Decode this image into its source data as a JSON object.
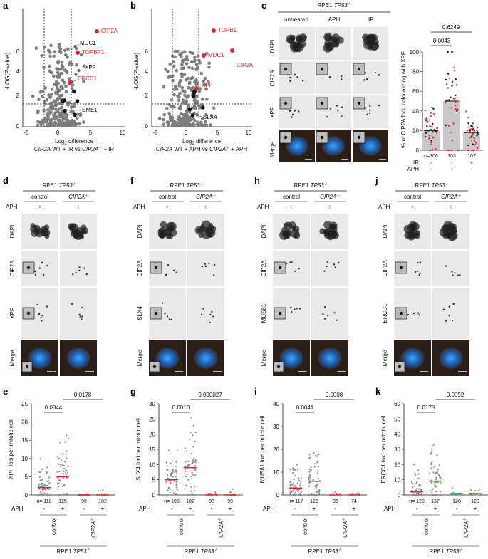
{
  "panel_labels": [
    "a",
    "b",
    "c",
    "d",
    "e",
    "f",
    "g",
    "h",
    "i",
    "j",
    "k"
  ],
  "cell_line": "RPE1",
  "gene": "TP53",
  "gene_sup": "-/-",
  "mutant": "CIP2A",
  "mutant_sup": "-/-",
  "conditions": {
    "control": "control",
    "untreated": "untreated",
    "aph": "APH",
    "ir": "IR",
    "plus": "+",
    "minus": "-"
  },
  "channels": {
    "dapi": "DAPI",
    "cip2a": "CIP2A",
    "xpf": "XPF",
    "slx4": "SLX4",
    "mus81": "MUS81",
    "ercc1": "ERCC1",
    "merge": "Merge"
  },
  "volcano_a": {
    "ylabel": "-LOG(P-value)",
    "xlabel_pre": "Log",
    "xlabel_sub": "2",
    "xlabel_post": " difference",
    "subtitle_pre": "CIP2A",
    "subtitle_mid": " WT + IR vs ",
    "subtitle_mut": "CIP2A",
    "subtitle_post": " + IR",
    "xticks": [
      "-5",
      "0",
      "5",
      "10"
    ],
    "yticks": [
      "0",
      "2",
      "4",
      "6"
    ],
    "labels": {
      "cip2a": "CIP2A",
      "topbp1": "TOPBP1",
      "mdc1": "MDC1",
      "xpf": "XPF",
      "ercc1": "ERCC1",
      "eme1": "EME1"
    }
  },
  "volcano_b": {
    "subtitle_pre": "CIP2A",
    "subtitle_mid": " WT + APH vs ",
    "subtitle_mut": "CIP2A",
    "subtitle_post": " + APH",
    "labels": {
      "topbp1": "TOPB1",
      "mdc1": "MDC1",
      "cip2a": "CIP2A",
      "xpf": "XPF",
      "slx4": "SLX4"
    }
  },
  "chart_data": [
    {
      "type": "bar",
      "panel": "c",
      "ylabel": "% of CIP2A foci, colocalizing with XPF",
      "yticks": [
        "0",
        "20",
        "40",
        "60",
        "80",
        "100"
      ],
      "ylim": [
        0,
        100
      ],
      "categories": [
        "untreated",
        "APH",
        "IR"
      ],
      "values": [
        20,
        50,
        18
      ],
      "n": [
        "106",
        "103",
        "107"
      ],
      "n_prefix": "n=",
      "pvalues": [
        "0.0043",
        "0.6249"
      ],
      "row_labels": [
        "IR",
        "APH"
      ],
      "ir": [
        "-",
        "-",
        "+"
      ],
      "aph": [
        "-",
        "+",
        "-"
      ]
    },
    {
      "type": "scatter",
      "panel": "e",
      "ylabel": "XPF foci per mitotic cell",
      "yticks": [
        "0",
        "5",
        "10",
        "15",
        "20",
        "25"
      ],
      "ylim": [
        0,
        25
      ],
      "medians": [
        2,
        5,
        0,
        0
      ],
      "n": [
        "118",
        "125",
        "99",
        "102"
      ],
      "pvalues": [
        "0.0844",
        "0.0178"
      ]
    },
    {
      "type": "scatter",
      "panel": "g",
      "ylabel": "SLX4 foci per mitotic cell",
      "yticks": [
        "0",
        "5",
        "10",
        "15",
        "20",
        "25",
        "30"
      ],
      "ylim": [
        0,
        30
      ],
      "medians": [
        5,
        9,
        0,
        0
      ],
      "n": [
        "108",
        "102",
        "98",
        "99"
      ],
      "pvalues": [
        "0.0010",
        "0.000027"
      ]
    },
    {
      "type": "scatter",
      "panel": "i",
      "ylabel": "MUS81 foci per mitotic cell",
      "yticks": [
        "0",
        "10",
        "20",
        "30",
        "40"
      ],
      "ylim": [
        0,
        40
      ],
      "medians": [
        3,
        6,
        0,
        0
      ],
      "n": [
        "117",
        "125",
        "96",
        "74"
      ],
      "pvalues": [
        "0.0041",
        "0.0008"
      ]
    },
    {
      "type": "scatter",
      "panel": "k",
      "ylabel": "ERCC1 foci per mitotic cell",
      "yticks": [
        "0",
        "10",
        "20",
        "30",
        "40",
        "50",
        "60"
      ],
      "ylim": [
        0,
        60
      ],
      "medians": [
        2,
        9,
        1,
        1
      ],
      "n": [
        "120",
        "137",
        "120",
        "120"
      ],
      "pvalues": [
        "0.0178",
        "0.0092"
      ]
    }
  ],
  "colors": {
    "red": "#e8242a",
    "grey": "#7d7d7d",
    "cyan": "#27a8e0"
  }
}
